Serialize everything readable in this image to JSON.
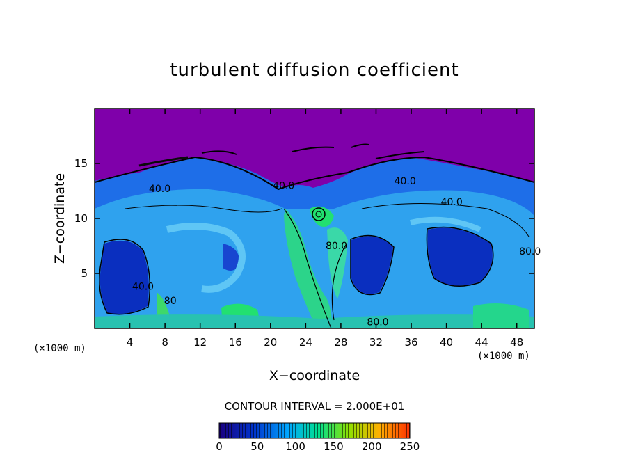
{
  "chart_data": {
    "type": "heatmap",
    "title": "turbulent diffusion coefficient",
    "xlabel": "X−coordinate",
    "ylabel": "Z−coordinate",
    "x_unit": "(×1000 m)",
    "y_unit": "(×1000 m)",
    "xlim": [
      0,
      50
    ],
    "ylim": [
      0,
      20
    ],
    "x_ticks": [
      4,
      8,
      12,
      16,
      20,
      24,
      28,
      32,
      36,
      40,
      44,
      48
    ],
    "y_ticks": [
      5,
      10,
      15
    ],
    "contour_interval_text": "CONTOUR INTERVAL = 2.000E+01",
    "contour_labels": [
      {
        "text": "40.0",
        "x": 7.4,
        "y": 12.4
      },
      {
        "text": "40.0",
        "x": 5.5,
        "y": 3.5
      },
      {
        "text": "80",
        "x": 8.6,
        "y": 2.2
      },
      {
        "text": "40.0",
        "x": 21.5,
        "y": 12.7
      },
      {
        "text": "40.0",
        "x": 35.3,
        "y": 13.1
      },
      {
        "text": "40.0",
        "x": 40.6,
        "y": 11.2
      },
      {
        "text": "80.0",
        "x": 27.5,
        "y": 7.2
      },
      {
        "text": "80.0",
        "x": 32.2,
        "y": 0.3
      },
      {
        "text": "80.0",
        "x": 49.5,
        "y": 6.7
      }
    ],
    "colorbar": {
      "min": 0,
      "max": 250,
      "ticks": [
        0,
        50,
        100,
        150,
        200,
        250
      ],
      "colors": [
        "#1a0080",
        "#0033cc",
        "#00a6ff",
        "#00e090",
        "#8ee000",
        "#ffb000",
        "#ff3000"
      ]
    },
    "colors": {
      "background_region": "#7f00aa",
      "low": "#1040d8",
      "mid": "#2fa8f0",
      "high": "#22e070"
    }
  }
}
